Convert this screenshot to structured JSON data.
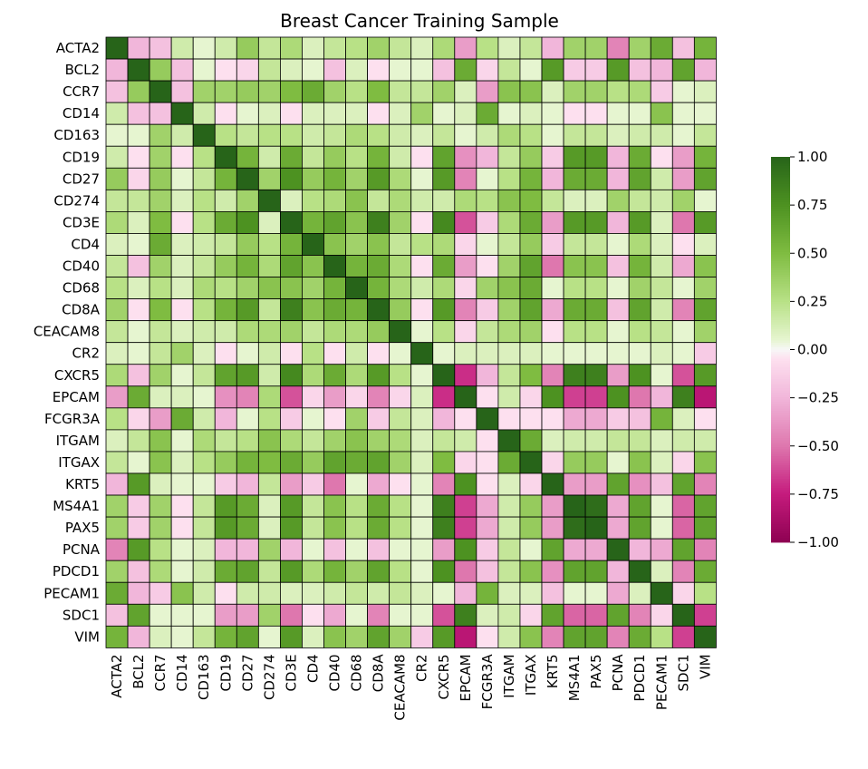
{
  "chart_data": {
    "type": "heatmap",
    "title": "Breast Cancer Training Sample",
    "rows": [
      "ACTA2",
      "BCL2",
      "CCR7",
      "CD14",
      "CD163",
      "CD19",
      "CD27",
      "CD274",
      "CD3E",
      "CD4",
      "CD40",
      "CD68",
      "CD8A",
      "CEACAM8",
      "CR2",
      "CXCR5",
      "EPCAM",
      "FCGR3A",
      "ITGAM",
      "ITGAX",
      "KRT5",
      "MS4A1",
      "PAX5",
      "PCNA",
      "PDCD1",
      "PECAM1",
      "SDC1",
      "VIM"
    ],
    "columns": [
      "ACTA2",
      "BCL2",
      "CCR7",
      "CD14",
      "CD163",
      "CD19",
      "CD27",
      "CD274",
      "CD3E",
      "CD4",
      "CD40",
      "CD68",
      "CD8A",
      "CEACAM8",
      "CR2",
      "CXCR5",
      "EPCAM",
      "FCGR3A",
      "ITGAM",
      "ITGAX",
      "KRT5",
      "MS4A1",
      "PAX5",
      "PCNA",
      "PDCD1",
      "PECAM1",
      "SDC1",
      "VIM"
    ],
    "values": [
      [
        1.0,
        -0.25,
        -0.2,
        0.15,
        0.05,
        0.15,
        0.4,
        0.2,
        0.3,
        0.1,
        0.2,
        0.25,
        0.35,
        0.2,
        0.1,
        0.3,
        -0.35,
        0.25,
        0.1,
        0.2,
        -0.25,
        0.35,
        0.35,
        -0.45,
        0.35,
        0.6,
        -0.2,
        0.55
      ],
      [
        -0.25,
        1.0,
        0.4,
        -0.2,
        0.05,
        -0.05,
        -0.1,
        0.2,
        0.1,
        0.05,
        -0.2,
        0.1,
        -0.05,
        0.05,
        0.05,
        -0.2,
        0.6,
        -0.1,
        0.2,
        0.05,
        0.7,
        -0.15,
        -0.15,
        0.7,
        -0.2,
        -0.25,
        0.65,
        -0.25
      ],
      [
        -0.2,
        0.4,
        1.0,
        -0.2,
        0.35,
        0.35,
        0.4,
        0.35,
        0.5,
        0.6,
        0.35,
        0.25,
        0.5,
        0.2,
        0.2,
        0.35,
        0.1,
        -0.35,
        0.45,
        0.45,
        0.1,
        0.35,
        0.35,
        0.25,
        0.3,
        -0.15,
        0.05,
        0.1
      ],
      [
        0.15,
        -0.2,
        -0.2,
        1.0,
        0.15,
        -0.05,
        0.05,
        0.1,
        -0.05,
        0.1,
        0.1,
        0.1,
        -0.05,
        0.1,
        0.35,
        0.05,
        0.1,
        0.6,
        0.05,
        0.1,
        0.05,
        -0.05,
        -0.05,
        0.05,
        0.05,
        0.45,
        0.05,
        0.05
      ],
      [
        0.05,
        0.05,
        0.35,
        0.15,
        1.0,
        0.25,
        0.2,
        0.25,
        0.25,
        0.15,
        0.2,
        0.3,
        0.25,
        0.15,
        0.1,
        0.2,
        0.05,
        0.15,
        0.3,
        0.25,
        0.05,
        0.2,
        0.2,
        0.1,
        0.15,
        0.15,
        0.05,
        0.2
      ],
      [
        0.15,
        -0.05,
        0.35,
        -0.05,
        0.25,
        1.0,
        0.55,
        0.15,
        0.6,
        0.2,
        0.4,
        0.25,
        0.55,
        0.15,
        -0.05,
        0.65,
        -0.4,
        -0.25,
        0.2,
        0.4,
        -0.15,
        0.7,
        0.7,
        -0.25,
        0.6,
        -0.05,
        -0.35,
        0.55
      ],
      [
        0.4,
        -0.1,
        0.4,
        0.05,
        0.2,
        0.55,
        1.0,
        0.35,
        0.75,
        0.4,
        0.55,
        0.35,
        0.7,
        0.3,
        0.05,
        0.7,
        -0.45,
        0.05,
        0.25,
        0.55,
        -0.25,
        0.6,
        0.6,
        -0.25,
        0.65,
        0.15,
        -0.35,
        0.65
      ],
      [
        0.2,
        0.2,
        0.35,
        0.1,
        0.25,
        0.15,
        0.35,
        1.0,
        0.1,
        0.25,
        0.3,
        0.45,
        0.2,
        0.3,
        0.15,
        0.15,
        0.3,
        0.25,
        0.45,
        0.5,
        0.2,
        0.1,
        0.1,
        0.35,
        0.2,
        0.15,
        0.35,
        0.05
      ],
      [
        0.3,
        0.1,
        0.5,
        -0.05,
        0.25,
        0.6,
        0.75,
        0.1,
        1.0,
        0.55,
        0.65,
        0.45,
        0.85,
        0.35,
        -0.05,
        0.8,
        -0.6,
        -0.15,
        0.3,
        0.6,
        -0.35,
        0.7,
        0.7,
        -0.25,
        0.7,
        0.1,
        -0.5,
        0.7
      ],
      [
        0.1,
        0.05,
        0.6,
        0.1,
        0.15,
        0.2,
        0.4,
        0.25,
        0.55,
        1.0,
        0.45,
        0.35,
        0.45,
        0.2,
        0.25,
        0.3,
        -0.1,
        0.05,
        0.2,
        0.4,
        -0.15,
        0.2,
        0.2,
        0.05,
        0.3,
        0.1,
        -0.05,
        0.1
      ],
      [
        0.2,
        -0.2,
        0.35,
        0.1,
        0.2,
        0.4,
        0.55,
        0.3,
        0.65,
        0.45,
        1.0,
        0.55,
        0.6,
        0.3,
        -0.05,
        0.6,
        -0.35,
        -0.05,
        0.35,
        0.65,
        -0.5,
        0.45,
        0.45,
        -0.2,
        0.55,
        0.15,
        -0.3,
        0.45
      ],
      [
        0.25,
        0.1,
        0.25,
        0.1,
        0.3,
        0.25,
        0.35,
        0.45,
        0.45,
        0.35,
        0.55,
        1.0,
        0.55,
        0.3,
        0.15,
        0.3,
        -0.1,
        0.35,
        0.45,
        0.6,
        0.05,
        0.25,
        0.25,
        0.05,
        0.35,
        0.2,
        0.05,
        0.35
      ],
      [
        0.35,
        -0.05,
        0.5,
        -0.05,
        0.25,
        0.55,
        0.7,
        0.2,
        0.85,
        0.45,
        0.6,
        0.55,
        1.0,
        0.4,
        -0.05,
        0.7,
        -0.45,
        -0.15,
        0.35,
        0.65,
        -0.3,
        0.6,
        0.6,
        -0.2,
        0.65,
        0.15,
        -0.45,
        0.65
      ],
      [
        0.2,
        0.05,
        0.2,
        0.1,
        0.15,
        0.15,
        0.3,
        0.3,
        0.35,
        0.2,
        0.3,
        0.3,
        0.4,
        1.0,
        0.05,
        0.25,
        -0.1,
        0.2,
        0.3,
        0.35,
        -0.05,
        0.25,
        0.25,
        0.05,
        0.25,
        0.2,
        0.05,
        0.35
      ],
      [
        0.1,
        0.05,
        0.2,
        0.35,
        0.1,
        -0.05,
        0.05,
        0.15,
        -0.05,
        0.25,
        -0.05,
        0.15,
        -0.05,
        0.05,
        1.0,
        0.05,
        0.1,
        0.1,
        0.1,
        0.1,
        0.05,
        0.05,
        0.05,
        0.05,
        0.05,
        0.1,
        0.05,
        -0.15
      ],
      [
        0.3,
        -0.2,
        0.35,
        0.05,
        0.2,
        0.65,
        0.7,
        0.15,
        0.8,
        0.3,
        0.6,
        0.3,
        0.7,
        0.25,
        0.05,
        1.0,
        -0.7,
        -0.25,
        0.2,
        0.5,
        -0.45,
        0.85,
        0.85,
        -0.35,
        0.75,
        0.05,
        -0.6,
        0.7
      ],
      [
        -0.35,
        0.6,
        0.1,
        0.1,
        0.05,
        -0.4,
        -0.45,
        0.3,
        -0.6,
        -0.1,
        -0.35,
        -0.1,
        -0.45,
        -0.1,
        0.1,
        -0.7,
        1.0,
        -0.05,
        0.15,
        -0.1,
        0.75,
        -0.65,
        -0.65,
        0.75,
        -0.5,
        -0.25,
        0.85,
        -0.8
      ],
      [
        0.25,
        -0.1,
        -0.35,
        0.6,
        0.15,
        -0.25,
        0.05,
        0.25,
        -0.15,
        0.05,
        -0.05,
        0.35,
        -0.15,
        0.2,
        0.1,
        -0.25,
        -0.05,
        1.0,
        -0.05,
        -0.05,
        -0.05,
        -0.3,
        -0.3,
        -0.15,
        -0.2,
        0.55,
        0.1,
        -0.05
      ],
      [
        0.1,
        0.2,
        0.45,
        0.05,
        0.3,
        0.2,
        0.25,
        0.45,
        0.3,
        0.2,
        0.35,
        0.45,
        0.35,
        0.3,
        0.1,
        0.2,
        0.15,
        -0.05,
        1.0,
        0.6,
        0.1,
        0.15,
        0.15,
        0.2,
        0.2,
        0.1,
        0.15,
        0.15
      ],
      [
        0.2,
        0.05,
        0.45,
        0.1,
        0.25,
        0.4,
        0.55,
        0.5,
        0.6,
        0.4,
        0.65,
        0.6,
        0.65,
        0.35,
        0.1,
        0.5,
        -0.1,
        -0.05,
        0.6,
        1.0,
        -0.1,
        0.4,
        0.4,
        0.05,
        0.45,
        0.1,
        -0.1,
        0.45
      ],
      [
        -0.25,
        0.7,
        0.1,
        0.05,
        0.05,
        -0.15,
        -0.25,
        0.2,
        -0.35,
        -0.15,
        -0.5,
        0.05,
        -0.3,
        -0.05,
        0.05,
        -0.45,
        0.75,
        -0.05,
        0.1,
        -0.1,
        1.0,
        -0.35,
        -0.35,
        0.65,
        -0.4,
        -0.2,
        0.65,
        -0.45
      ],
      [
        0.35,
        -0.15,
        0.35,
        -0.05,
        0.2,
        0.7,
        0.6,
        0.1,
        0.7,
        0.2,
        0.45,
        0.25,
        0.6,
        0.25,
        0.05,
        0.85,
        -0.65,
        -0.3,
        0.15,
        0.4,
        -0.35,
        1.0,
        0.95,
        -0.3,
        0.65,
        0.05,
        -0.55,
        0.65
      ],
      [
        0.35,
        -0.15,
        0.35,
        -0.05,
        0.2,
        0.7,
        0.6,
        0.1,
        0.7,
        0.2,
        0.45,
        0.25,
        0.6,
        0.25,
        0.05,
        0.85,
        -0.65,
        -0.3,
        0.15,
        0.4,
        -0.35,
        0.95,
        1.0,
        -0.3,
        0.65,
        0.05,
        -0.55,
        0.65
      ],
      [
        -0.45,
        0.7,
        0.25,
        0.05,
        0.1,
        -0.25,
        -0.25,
        0.35,
        -0.25,
        0.05,
        -0.2,
        0.05,
        -0.2,
        0.05,
        0.05,
        -0.35,
        0.75,
        -0.15,
        0.2,
        0.05,
        0.65,
        -0.3,
        -0.3,
        1.0,
        -0.25,
        -0.3,
        0.65,
        -0.45
      ],
      [
        0.35,
        -0.2,
        0.3,
        0.05,
        0.15,
        0.6,
        0.65,
        0.2,
        0.7,
        0.3,
        0.55,
        0.35,
        0.65,
        0.25,
        0.05,
        0.75,
        -0.5,
        -0.2,
        0.2,
        0.45,
        -0.4,
        0.65,
        0.65,
        -0.25,
        1.0,
        0.1,
        -0.45,
        0.6
      ],
      [
        0.6,
        -0.25,
        -0.15,
        0.45,
        0.15,
        -0.05,
        0.15,
        0.15,
        0.1,
        0.1,
        0.15,
        0.2,
        0.15,
        0.2,
        0.1,
        0.05,
        -0.25,
        0.55,
        0.1,
        0.1,
        -0.2,
        0.05,
        0.05,
        -0.3,
        0.1,
        1.0,
        -0.1,
        0.25
      ],
      [
        -0.2,
        0.65,
        0.05,
        0.05,
        0.05,
        -0.35,
        -0.35,
        0.35,
        -0.5,
        -0.05,
        -0.3,
        0.05,
        -0.45,
        0.05,
        0.05,
        -0.6,
        0.85,
        0.1,
        0.15,
        -0.1,
        0.65,
        -0.55,
        -0.55,
        0.65,
        -0.45,
        -0.1,
        1.0,
        -0.65
      ],
      [
        0.55,
        -0.25,
        0.1,
        0.05,
        0.2,
        0.55,
        0.65,
        0.05,
        0.7,
        0.1,
        0.45,
        0.35,
        0.65,
        0.35,
        -0.15,
        0.7,
        -0.8,
        -0.05,
        0.15,
        0.45,
        -0.45,
        0.65,
        0.65,
        -0.45,
        0.6,
        0.25,
        -0.65,
        1.0
      ]
    ],
    "colorscale": "PiYG",
    "vmin": -1.0,
    "vmax": 1.0,
    "colorbar_ticks": [
      "1.00",
      "0.75",
      "0.50",
      "0.25",
      "0.00",
      "−0.25",
      "−0.50",
      "−0.75",
      "−1.00"
    ],
    "colorbar_tick_values": [
      1.0,
      0.75,
      0.5,
      0.25,
      0.0,
      -0.25,
      -0.5,
      -0.75,
      -1.0
    ]
  }
}
